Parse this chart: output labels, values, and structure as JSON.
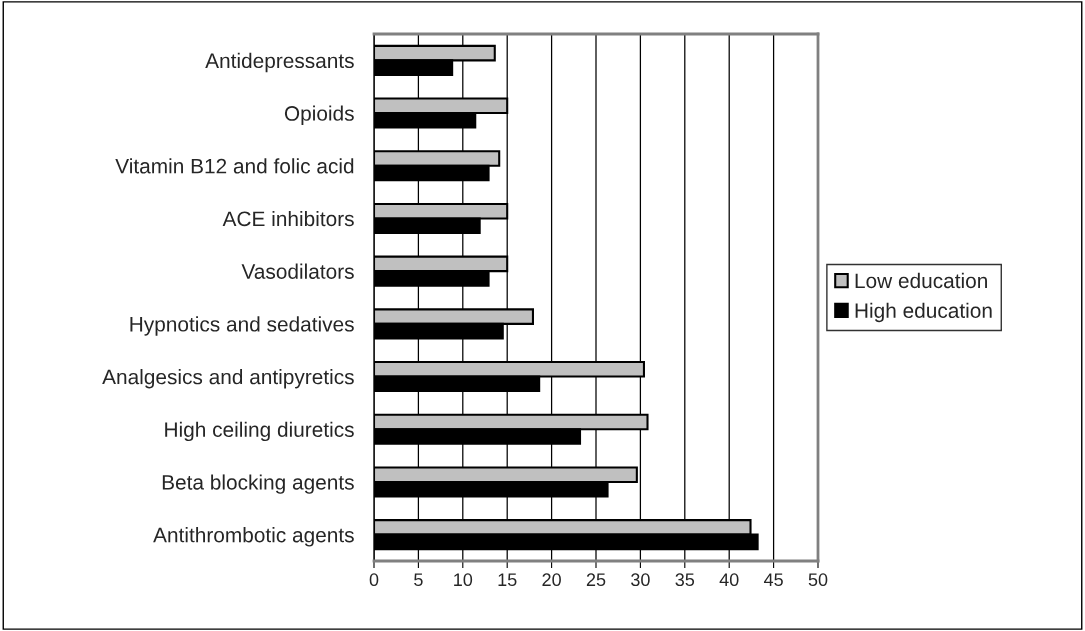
{
  "chart_data": {
    "type": "bar",
    "orientation": "horizontal",
    "categories": [
      "Antidepressants",
      "Opioids",
      "Vitamin B12 and folic acid",
      "ACE inhibitors",
      "Vasodilators",
      "Hypnotics and sedatives",
      "Analgesics and antipyretics",
      "High ceiling diuretics",
      "Beta blocking agents",
      "Antithrombotic agents"
    ],
    "series": [
      {
        "name": "Low education",
        "color": "#c0c0c0",
        "values": [
          13.6,
          15,
          14.1,
          15,
          15,
          17.9,
          30.4,
          30.8,
          29.6,
          42.4
        ]
      },
      {
        "name": "High education",
        "color": "#000000",
        "values": [
          8.8,
          11.4,
          12.9,
          11.9,
          12.9,
          14.5,
          18.6,
          23.2,
          26.3,
          43.2
        ]
      }
    ],
    "xlim": [
      0,
      50
    ],
    "xticks": [
      0,
      5,
      10,
      15,
      20,
      25,
      30,
      35,
      40,
      45,
      50
    ],
    "grid": "x",
    "legend": "right"
  }
}
